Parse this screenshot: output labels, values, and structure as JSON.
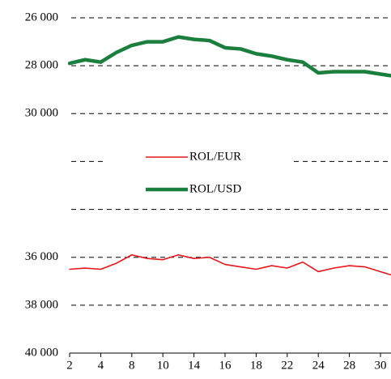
{
  "chart_data": {
    "type": "line",
    "categories": [
      "2",
      null,
      "4",
      null,
      "8",
      null,
      "10",
      null,
      "14",
      null,
      "16",
      null,
      "18",
      null,
      "22",
      null,
      "24",
      null,
      "28",
      null,
      "30",
      null
    ],
    "series": [
      {
        "name": "ROL/EUR",
        "color": "#e8151b",
        "width": 1.6,
        "values": [
          36500,
          36450,
          36500,
          36250,
          35900,
          36050,
          36100,
          35900,
          36050,
          36000,
          36300,
          36400,
          36500,
          36350,
          36450,
          36200,
          36600,
          36450,
          36350,
          36400,
          36600,
          36800
        ]
      },
      {
        "name": "ROL/USD",
        "color": "#1a7f3c",
        "width": 4.5,
        "values": [
          27900,
          27750,
          27850,
          27450,
          27150,
          27000,
          27000,
          26800,
          26900,
          26950,
          27250,
          27300,
          27500,
          27600,
          27750,
          27850,
          28300,
          28250,
          28250,
          28250,
          28350,
          28450
        ]
      }
    ],
    "ylim": [
      26000,
      40000
    ],
    "yinverted": true,
    "yticks": [
      {
        "value": 26000,
        "label": "26 000"
      },
      {
        "value": 28000,
        "label": "28 000"
      },
      {
        "value": 30000,
        "label": "30 000"
      },
      {
        "value": 32000,
        "label": null
      },
      {
        "value": 34000,
        "label": null
      },
      {
        "value": 36000,
        "label": "36 000"
      },
      {
        "value": 38000,
        "label": "38 000"
      },
      {
        "value": 40000,
        "label": "40 000"
      }
    ],
    "grid": true,
    "legend": "center"
  }
}
